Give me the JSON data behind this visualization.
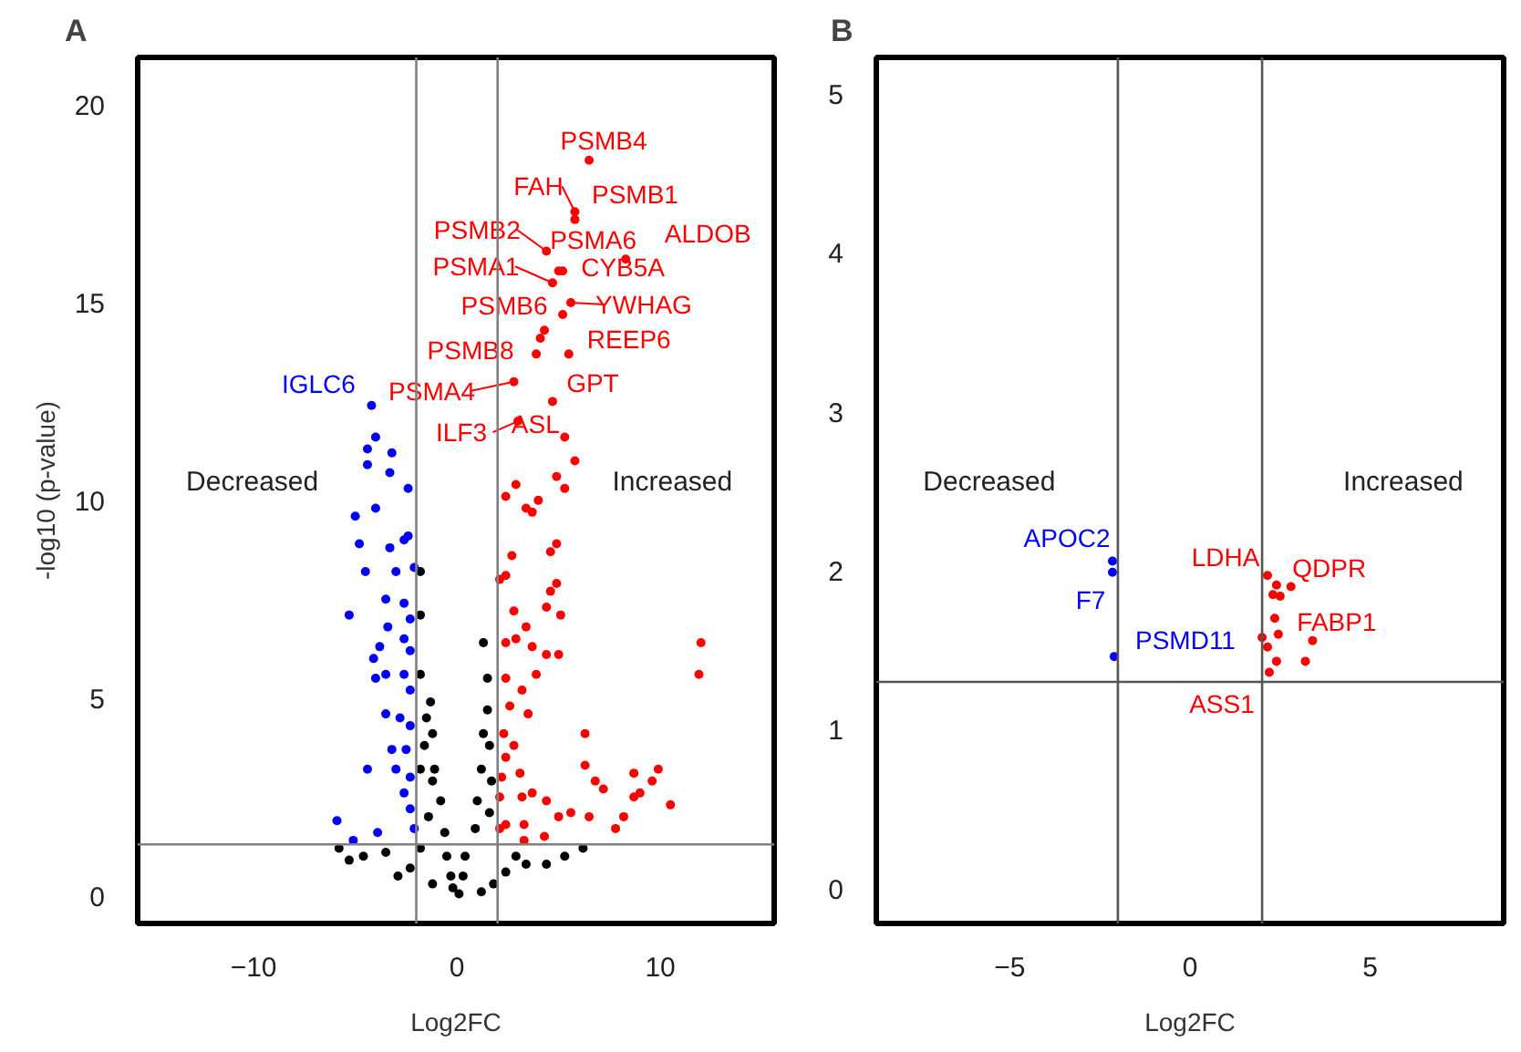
{
  "chart_data": [
    {
      "type": "scatter",
      "title": "A",
      "xlabel": "Log2FC",
      "ylabel": "-log10 (p-value)",
      "xlim": [
        -15.7,
        15.6
      ],
      "ylim": [
        -0.7,
        21.2
      ],
      "xticks": [
        -10,
        0,
        10
      ],
      "yticks": [
        0,
        5,
        10,
        15,
        20
      ],
      "grid": false,
      "marker": "circle",
      "series": [
        {
          "color": "#000000",
          "x": [
            -1.8,
            -1.8,
            1.3,
            -1.8,
            1.5,
            -1.3,
            1.5,
            -1.2,
            1.3,
            -1.1,
            1.2,
            -0.8,
            1.0,
            -0.6,
            0.9,
            -0.5,
            0.4,
            -0.2,
            0.1,
            -0.3,
            0.3,
            -5.8,
            -5.3,
            -4.6,
            -3.5,
            -2.3,
            -1.8,
            -2.9,
            -1.2,
            6.2,
            5.3,
            4.4,
            2.9,
            2.4,
            1.8,
            1.2,
            3.4,
            -1.4,
            -1.6,
            -1.5,
            1.6,
            1.7,
            -1.2,
            1.6,
            -1.8
          ],
          "values": [
            8.2,
            7.1,
            6.4,
            5.6,
            5.5,
            4.9,
            4.7,
            4.1,
            4.1,
            3.2,
            3.2,
            2.4,
            2.4,
            1.6,
            1.7,
            1.0,
            1.0,
            0.2,
            0.05,
            0.5,
            0.5,
            1.2,
            0.9,
            1.0,
            1.1,
            0.7,
            1.2,
            0.5,
            0.3,
            1.2,
            1.0,
            0.8,
            1.0,
            0.6,
            0.3,
            0.1,
            0.8,
            2.0,
            3.8,
            4.5,
            3.8,
            2.9,
            2.9,
            2.1,
            3.2
          ]
        },
        {
          "color": "#0000ff",
          "x": [
            -4.2,
            -4.0,
            -4.4,
            -4.4,
            -3.2,
            -3.3,
            -2.4,
            -4.0,
            -5.0,
            -4.8,
            -4.5,
            -3.3,
            -2.4,
            -2.6,
            -3.0,
            -2.1,
            -5.3,
            -3.5,
            -2.6,
            -3.4,
            -2.3,
            -3.8,
            -2.6,
            -4.1,
            -2.3,
            -3.5,
            -4.0,
            -2.6,
            -2.3,
            -3.5,
            -2.8,
            -2.3,
            -3.2,
            -2.5,
            -4.4,
            -3.0,
            -2.3,
            -2.6,
            -2.3,
            -5.9,
            -3.9,
            -5.1,
            -2.1
          ],
          "values": [
            12.4,
            11.6,
            11.3,
            10.9,
            11.2,
            10.7,
            10.3,
            9.8,
            9.6,
            8.9,
            8.2,
            8.8,
            9.1,
            9.0,
            8.2,
            8.3,
            7.1,
            7.5,
            7.4,
            6.8,
            7.0,
            6.3,
            6.5,
            6.0,
            6.2,
            5.6,
            5.5,
            5.6,
            5.2,
            4.6,
            4.5,
            4.3,
            3.7,
            3.7,
            3.2,
            3.2,
            3.0,
            2.6,
            2.2,
            1.9,
            1.6,
            1.4,
            1.7
          ]
        },
        {
          "color": "#ff0000",
          "x": [
            6.5,
            5.8,
            5.8,
            4.4,
            8.3,
            5.0,
            5.2,
            4.7,
            5.6,
            5.2,
            4.3,
            4.1,
            3.9,
            5.5,
            2.8,
            4.7,
            5.3,
            3.0,
            5.8,
            4.9,
            5.3,
            2.9,
            2.4,
            4.0,
            3.7,
            3.4,
            4.9,
            4.6,
            2.7,
            2.4,
            2.1,
            4.9,
            4.6,
            5.1,
            4.4,
            2.8,
            3.4,
            2.9,
            2.4,
            3.7,
            5.0,
            4.4,
            12.0,
            11.9,
            2.4,
            3.9,
            3.2,
            2.6,
            3.5,
            2.3,
            2.8,
            2.4,
            6.3,
            6.3,
            3.1,
            9.9,
            8.7,
            9.6,
            6.8,
            7.2,
            9.0,
            10.5,
            8.7,
            3.7,
            4.4,
            5.6,
            5.0,
            8.2,
            3.3,
            4.3,
            7.8,
            3.3,
            2.4,
            6.5,
            3.2,
            2.1,
            2.2,
            2.1
          ],
          "values": [
            18.6,
            17.3,
            17.1,
            16.3,
            16.1,
            15.8,
            15.8,
            15.5,
            15.0,
            14.7,
            14.3,
            14.1,
            13.7,
            13.7,
            13.0,
            12.5,
            11.6,
            12.0,
            11.0,
            10.6,
            10.3,
            10.4,
            10.1,
            10.0,
            9.7,
            9.8,
            8.9,
            8.7,
            8.6,
            8.1,
            8.0,
            7.9,
            7.7,
            7.1,
            7.3,
            7.2,
            6.8,
            6.5,
            6.4,
            6.3,
            6.1,
            6.1,
            6.4,
            5.6,
            5.5,
            5.6,
            5.2,
            4.8,
            4.6,
            4.1,
            3.8,
            3.5,
            4.1,
            3.3,
            3.1,
            3.2,
            3.1,
            2.9,
            2.9,
            2.7,
            2.6,
            2.3,
            2.5,
            2.6,
            2.4,
            2.1,
            2.0,
            2.0,
            1.8,
            1.5,
            1.7,
            1.4,
            1.8,
            2.0,
            2.5,
            2.5,
            3.0,
            1.7
          ]
        }
      ],
      "ref_lines": [
        {
          "axis": "x",
          "value": -2,
          "color": "#808080"
        },
        {
          "axis": "x",
          "value": 2,
          "color": "#808080"
        },
        {
          "axis": "y",
          "value": 1.3,
          "color": "#808080"
        }
      ],
      "annotations": [
        {
          "text": "PSMB4",
          "x": 6.5,
          "y": 18.6
        },
        {
          "text": "FAH",
          "x": 5.8,
          "y": 17.3
        },
        {
          "text": "PSMB1",
          "x": 5.8,
          "y": 17.1
        },
        {
          "text": "PSMB2",
          "x": 4.4,
          "y": 16.3
        },
        {
          "text": "PSMA6",
          "x": 5.0,
          "y": 15.8
        },
        {
          "text": "ALDOB",
          "x": 8.3,
          "y": 16.1
        },
        {
          "text": "PSMA1",
          "x": 4.7,
          "y": 15.5
        },
        {
          "text": "CYB5A",
          "x": 5.2,
          "y": 15.8
        },
        {
          "text": "YWHAG",
          "x": 5.6,
          "y": 15.0
        },
        {
          "text": "PSMB6",
          "x": 5.2,
          "y": 14.7
        },
        {
          "text": "REEP6",
          "x": 5.5,
          "y": 13.7
        },
        {
          "text": "PSMB8",
          "x": 3.9,
          "y": 13.7
        },
        {
          "text": "GPT",
          "x": 4.7,
          "y": 12.5
        },
        {
          "text": "PSMA4",
          "x": 2.8,
          "y": 13.0
        },
        {
          "text": "IGLC6",
          "x": -4.2,
          "y": 12.4
        },
        {
          "text": "ILF3",
          "x": 3.0,
          "y": 12.0
        },
        {
          "text": "ASL",
          "x": 5.3,
          "y": 11.6
        },
        "Decreased",
        "Increased"
      ]
    },
    {
      "type": "scatter",
      "title": "B",
      "xlabel": "Log2FC",
      "xlim": [
        -8.7,
        8.7
      ],
      "ylim": [
        -0.22,
        5.23
      ],
      "xticks": [
        -5,
        0,
        5
      ],
      "yticks": [
        0,
        1,
        2,
        3,
        4,
        5
      ],
      "grid": false,
      "marker": "circle",
      "series": [
        {
          "color": "#0000ff",
          "x": [
            -2.15,
            -2.15,
            -2.1
          ],
          "values": [
            2.06,
            1.99,
            1.46
          ]
        },
        {
          "color": "#ff0000",
          "x": [
            2.15,
            2.4,
            2.8,
            2.3,
            2.5,
            2.35,
            2.45,
            2.0,
            2.15,
            3.4,
            2.4,
            3.2,
            2.2
          ],
          "values": [
            1.97,
            1.91,
            1.9,
            1.85,
            1.84,
            1.7,
            1.6,
            1.58,
            1.52,
            1.56,
            1.43,
            1.43,
            1.36
          ]
        }
      ],
      "ref_lines": [
        {
          "axis": "x",
          "value": -2,
          "color": "#555555"
        },
        {
          "axis": "x",
          "value": 2,
          "color": "#555555"
        },
        {
          "axis": "y",
          "value": 1.3,
          "color": "#555555"
        }
      ],
      "annotations": [
        {
          "text": "APOC2",
          "x": -2.15,
          "y": 2.06
        },
        {
          "text": "F7",
          "x": -2.15,
          "y": 1.99
        },
        {
          "text": "PSMD11",
          "x": -2.1,
          "y": 1.46
        },
        {
          "text": "LDHA",
          "x": 2.15,
          "y": 1.97
        },
        {
          "text": "QDPR",
          "x": 2.8,
          "y": 1.9
        },
        {
          "text": "FABP1",
          "x": 2.35,
          "y": 1.7
        },
        {
          "text": "ASS1",
          "x": 2.2,
          "y": 1.36
        },
        "Decreased",
        "Increased"
      ]
    }
  ]
}
